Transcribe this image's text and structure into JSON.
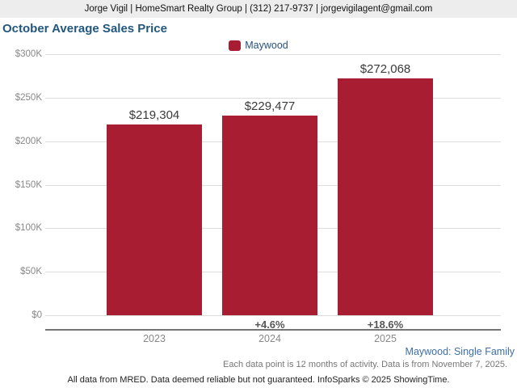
{
  "header": {
    "contact": "Jorge Vigil | HomeSmart Realty Group | (312) 217-9737 | jorgevigilagent@gmail.com"
  },
  "chart_data": {
    "type": "bar",
    "title": "October Average Sales Price",
    "series_name": "Maywood",
    "bar_color": "#a91d33",
    "categories": [
      "2023",
      "2024",
      "2025"
    ],
    "values": [
      219304,
      229477,
      272068
    ],
    "value_labels": [
      "$219,304",
      "$229,477",
      "$272,068"
    ],
    "pct_change_labels": [
      "",
      "+4.6%",
      "+18.6%"
    ],
    "ylim": [
      0,
      300000
    ],
    "ytick_values": [
      0,
      50000,
      100000,
      150000,
      200000,
      250000,
      300000
    ],
    "ytick_labels": [
      "$0",
      "$50K",
      "$100K",
      "$150K",
      "$200K",
      "$250K",
      "$300K"
    ],
    "grid": true,
    "legend_position": "top"
  },
  "footnotes": {
    "series_scope": "Maywood: Single Family",
    "data_note": "Each data point is 12 months of activity. Data is from November 7, 2025.",
    "disclaimer": "All data from MRED. Data deemed reliable but not guaranteed. InfoSparks © 2025 ShowingTime."
  }
}
